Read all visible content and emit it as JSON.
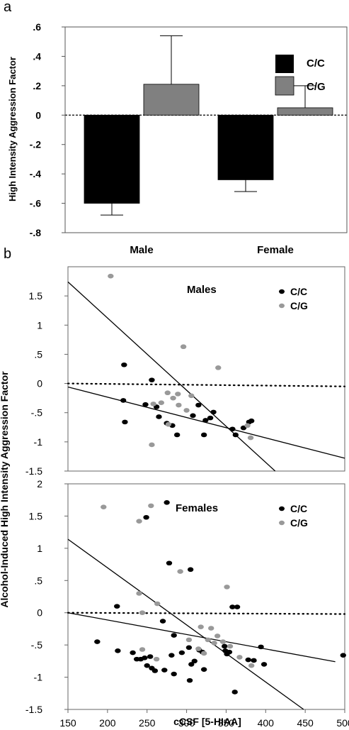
{
  "figure": {
    "panel_a_label": "a",
    "panel_b_label": "b",
    "panel_b_ylabel": "Alcohol-Induced High Intensity Aggression Factor",
    "panel_b_xlabel": "cCSF [5-HIAA]"
  },
  "chart_data": [
    {
      "type": "bar",
      "panel": "a",
      "ylabel": "High Intensity Aggression Factor",
      "categories": [
        "Male",
        "Female"
      ],
      "ylim": [
        -0.8,
        0.6
      ],
      "ytick_labels": [
        ".6",
        ".4",
        ".2",
        "0",
        "-.2",
        "-.4",
        "-.6",
        "-.8"
      ],
      "yticks": [
        0.6,
        0.4,
        0.2,
        0,
        -0.2,
        -0.4,
        -0.6,
        -0.8
      ],
      "series": [
        {
          "name": "C/C",
          "color": "#000000",
          "values": [
            -0.6,
            -0.44
          ],
          "error": [
            0.08,
            0.08
          ]
        },
        {
          "name": "C/G",
          "color": "#808080",
          "values": [
            0.21,
            0.05
          ],
          "error": [
            0.33,
            0.15
          ]
        }
      ],
      "reference_line": {
        "y": 0,
        "style": "dashed"
      },
      "legend": "top-right"
    },
    {
      "type": "scatter",
      "panel": "b-top",
      "title": "Males",
      "xlim": [
        150,
        500
      ],
      "ylim": [
        -1.5,
        2
      ],
      "ytick_labels": [
        "1.5",
        "1",
        ".5",
        "0",
        "-.5",
        "-1",
        "-1.5"
      ],
      "yticks": [
        1.5,
        1,
        0.5,
        0,
        -0.5,
        -1,
        -1.5
      ],
      "legend": "top-right",
      "series": [
        {
          "name": "C/C",
          "color": "#000000",
          "points": [
            [
              221,
              0.32
            ],
            [
              220,
              -0.29
            ],
            [
              222,
              -0.66
            ],
            [
              248,
              -0.36
            ],
            [
              256,
              0.06
            ],
            [
              262,
              -0.4
            ],
            [
              265,
              -0.57
            ],
            [
              275,
              -0.68
            ],
            [
              282,
              -0.72
            ],
            [
              288,
              -0.88
            ],
            [
              308,
              -0.55
            ],
            [
              315,
              -0.37
            ],
            [
              322,
              -0.88
            ],
            [
              324,
              -0.63
            ],
            [
              330,
              -0.59
            ],
            [
              334,
              -0.49
            ],
            [
              358,
              -0.78
            ],
            [
              362,
              -0.88
            ],
            [
              372,
              -0.76
            ],
            [
              379,
              -0.66
            ],
            [
              382,
              -0.64
            ]
          ]
        },
        {
          "name": "C/G",
          "color": "#999999",
          "points": [
            [
              204,
              1.84
            ],
            [
              258,
              -0.35
            ],
            [
              268,
              -0.33
            ],
            [
              276,
              -0.16
            ],
            [
              283,
              -0.25
            ],
            [
              289,
              -0.18
            ],
            [
              296,
              0.63
            ],
            [
              277,
              -0.7
            ],
            [
              290,
              -0.37
            ],
            [
              300,
              -0.46
            ],
            [
              306,
              -0.21
            ],
            [
              340,
              0.27
            ],
            [
              377,
              -0.72
            ],
            [
              381,
              -0.93
            ],
            [
              256,
              -1.05
            ]
          ]
        }
      ],
      "fit_lines": [
        {
          "x": [
            150,
            412
          ],
          "y": [
            1.74,
            -1.5
          ]
        },
        {
          "x": [
            150,
            500
          ],
          "y": [
            -0.06,
            -1.28
          ]
        }
      ],
      "reference_line": {
        "y": 0,
        "style": "dotted",
        "x": [
          150,
          500
        ],
        "y_end": -0.05
      }
    },
    {
      "type": "scatter",
      "panel": "b-bottom",
      "title": "Females",
      "xlabel": "cCSF [5-HIAA]",
      "xlim": [
        150,
        500
      ],
      "ylim": [
        -1.5,
        2
      ],
      "xticks": [
        150,
        200,
        250,
        300,
        350,
        400,
        450,
        500
      ],
      "ytick_labels": [
        "2",
        "1.5",
        "1",
        ".5",
        "0",
        "-.5",
        "-1",
        "-1.5"
      ],
      "yticks": [
        2,
        1.5,
        1,
        0.5,
        0,
        -0.5,
        -1,
        -1.5
      ],
      "legend": "top-right",
      "series": [
        {
          "name": "C/C",
          "color": "#000000",
          "points": [
            [
              249,
              1.48
            ],
            [
              275,
              1.71
            ],
            [
              278,
              0.77
            ],
            [
              305,
              0.67
            ],
            [
              212,
              0.1
            ],
            [
              270,
              -0.13
            ],
            [
              284,
              -0.35
            ],
            [
              187,
              -0.45
            ],
            [
              213,
              -0.59
            ],
            [
              232,
              -0.62
            ],
            [
              237,
              -0.72
            ],
            [
              242,
              -0.72
            ],
            [
              247,
              -0.7
            ],
            [
              250,
              -0.82
            ],
            [
              254,
              -0.68
            ],
            [
              256,
              -0.86
            ],
            [
              260,
              -0.9
            ],
            [
              272,
              -0.89
            ],
            [
              281,
              -0.66
            ],
            [
              284,
              -0.95
            ],
            [
              294,
              -0.62
            ],
            [
              303,
              -0.54
            ],
            [
              306,
              -0.8
            ],
            [
              310,
              -0.75
            ],
            [
              316,
              -0.58
            ],
            [
              320,
              -0.61
            ],
            [
              322,
              -0.88
            ],
            [
              348,
              -0.52
            ],
            [
              349,
              -0.59
            ],
            [
              351,
              -0.64
            ],
            [
              354,
              -0.61
            ],
            [
              358,
              0.09
            ],
            [
              364,
              0.09
            ],
            [
              378,
              -0.73
            ],
            [
              385,
              -0.74
            ],
            [
              394,
              -0.53
            ],
            [
              398,
              -0.8
            ],
            [
              304,
              -1.05
            ],
            [
              361,
              -1.23
            ],
            [
              498,
              -0.66
            ]
          ]
        },
        {
          "name": "C/G",
          "color": "#999999",
          "points": [
            [
              195,
              1.64
            ],
            [
              240,
              1.42
            ],
            [
              255,
              1.66
            ],
            [
              240,
              0.3
            ],
            [
              244,
              0.0
            ],
            [
              263,
              0.14
            ],
            [
              292,
              0.64
            ],
            [
              303,
              -0.42
            ],
            [
              315,
              -0.56
            ],
            [
              318,
              -0.22
            ],
            [
              322,
              -0.63
            ],
            [
              327,
              -0.42
            ],
            [
              331,
              -0.24
            ],
            [
              335,
              -0.47
            ],
            [
              339,
              -0.36
            ],
            [
              346,
              -0.45
            ],
            [
              351,
              0.4
            ],
            [
              355,
              -0.52
            ],
            [
              367,
              -0.69
            ],
            [
              382,
              -0.82
            ],
            [
              244,
              -0.57
            ],
            [
              262,
              -0.72
            ]
          ]
        }
      ],
      "fit_lines": [
        {
          "x": [
            150,
            448
          ],
          "y": [
            1.14,
            -1.5
          ]
        },
        {
          "x": [
            150,
            488
          ],
          "y": [
            0.0,
            -0.76
          ]
        }
      ],
      "reference_line": {
        "y": 0,
        "style": "dotted",
        "x": [
          150,
          500
        ],
        "y_end": -0.02
      }
    }
  ]
}
